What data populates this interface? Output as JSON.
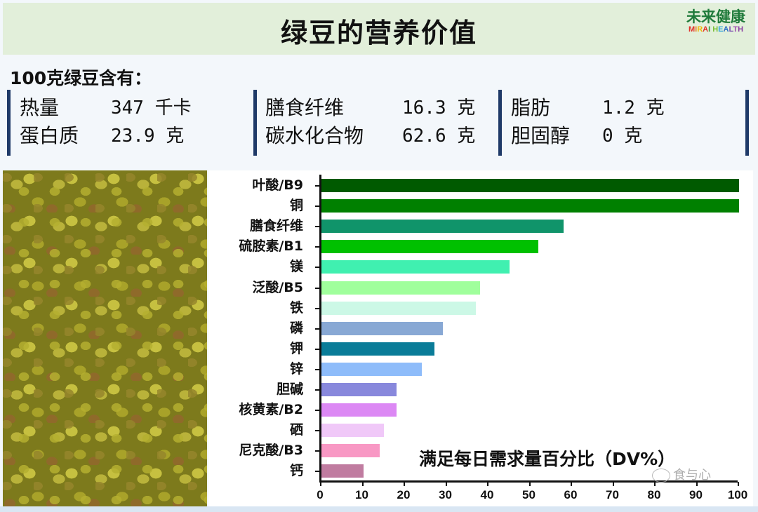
{
  "header": {
    "title": "绿豆的营养价值",
    "logo_cn": "未来健康",
    "logo_en": [
      "M",
      "I",
      "R",
      "A",
      "I",
      " H",
      "E",
      "A",
      "L",
      "T",
      "H"
    ]
  },
  "summary": {
    "subtitle": "100克绿豆含有：",
    "groups": [
      {
        "rows": [
          {
            "label": "热量",
            "value": "347 千卡"
          },
          {
            "label": "蛋白质",
            "value": "23.9 克"
          }
        ]
      },
      {
        "rows": [
          {
            "label": "膳食纤维",
            "value": "16.3 克"
          },
          {
            "label": "碳水化合物",
            "value": "62.6 克"
          }
        ]
      },
      {
        "rows": [
          {
            "label": "脂肪",
            "value": "1.2 克"
          },
          {
            "label": "胆固醇",
            "value": "0 克"
          }
        ]
      }
    ]
  },
  "photo": {
    "description": "mung-beans-photo"
  },
  "chart_data": {
    "type": "bar",
    "orientation": "horizontal",
    "title": "",
    "xlabel": "满足每日需求量百分比（DV%）",
    "ylabel": "",
    "xlim": [
      0,
      100
    ],
    "xticks": [
      0,
      10,
      20,
      30,
      40,
      50,
      60,
      70,
      80,
      90,
      100
    ],
    "grid": false,
    "legend": null,
    "categories": [
      "叶酸/B9",
      "铜",
      "膳食纤维",
      "硫胺素/B1",
      "镁",
      "泛酸/B5",
      "铁",
      "磷",
      "钾",
      "锌",
      "胆碱",
      "核黄素/B2",
      "硒",
      "尼克酸/B3",
      "钙"
    ],
    "values": [
      100,
      100,
      58,
      52,
      45,
      38,
      37,
      29,
      27,
      24,
      18,
      18,
      15,
      14,
      10
    ],
    "colors": [
      "#005a00",
      "#008000",
      "#10946a",
      "#00c000",
      "#40f0b0",
      "#a0ff9c",
      "#ccf8e6",
      "#88a8d4",
      "#0a7c98",
      "#8ebcfa",
      "#8888dc",
      "#dc88f4",
      "#f0c8f8",
      "#f898c4",
      "#c07ca0"
    ]
  },
  "watermark": "食与心"
}
